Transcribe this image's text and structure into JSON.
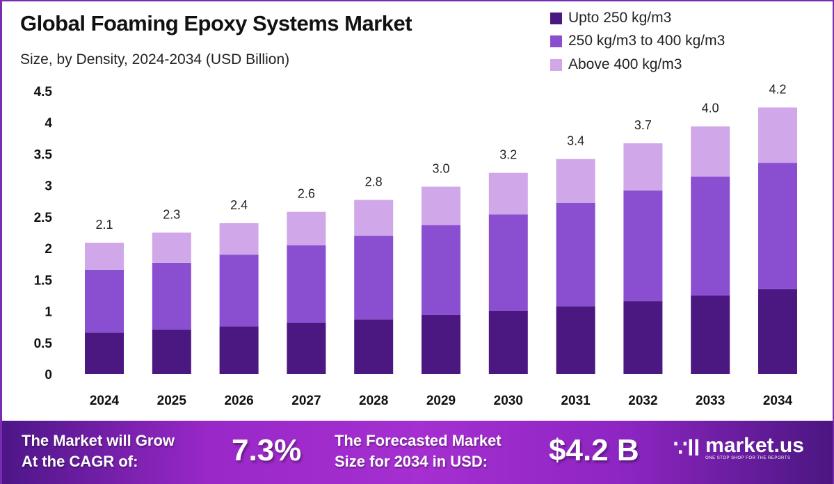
{
  "header": {
    "title": "Global Foaming Epoxy Systems Market",
    "subtitle": "Size, by Density, 2024-2034 (USD Billion)"
  },
  "chart_data": {
    "type": "bar",
    "stacked": true,
    "title": "Global Foaming Epoxy Systems Market",
    "subtitle": "Size, by Density, 2024-2034 (USD Billion)",
    "xlabel": "",
    "ylabel": "",
    "ylim": [
      0,
      4.5
    ],
    "yticks": [
      "0",
      "0.5",
      "1",
      "1.5",
      "2",
      "2.5",
      "3",
      "3.5",
      "4",
      "4.5"
    ],
    "grid": false,
    "legend_position": "top-right",
    "categories": [
      "2024",
      "2025",
      "2026",
      "2027",
      "2028",
      "2029",
      "2030",
      "2031",
      "2032",
      "2033",
      "2034"
    ],
    "series": [
      {
        "name": "Upto 250 kg/m3",
        "color": "#4b1780",
        "values": [
          0.66,
          0.71,
          0.76,
          0.82,
          0.87,
          0.94,
          1.01,
          1.08,
          1.16,
          1.25,
          1.35
        ]
      },
      {
        "name": "250 kg/m3 to 400 kg/m3",
        "color": "#8a4fd0",
        "values": [
          1.0,
          1.06,
          1.14,
          1.23,
          1.33,
          1.43,
          1.53,
          1.64,
          1.76,
          1.89,
          2.01
        ]
      },
      {
        "name": "Above 400 kg/m3",
        "color": "#d0a8ea",
        "values": [
          0.43,
          0.48,
          0.5,
          0.53,
          0.57,
          0.61,
          0.66,
          0.7,
          0.75,
          0.8,
          0.88
        ]
      }
    ],
    "totals": [
      "2.1",
      "2.3",
      "2.4",
      "2.6",
      "2.8",
      "3.0",
      "3.2",
      "3.4",
      "3.7",
      "4.0",
      "4.2"
    ]
  },
  "footer": {
    "cagr_text_1": "The Market will Grow",
    "cagr_text_2": "At the CAGR of:",
    "cagr_value": "7.3%",
    "forecast_text_1": "The Forecasted Market",
    "forecast_text_2": "Size for 2034 in USD:",
    "forecast_value": "$4.2 B",
    "logo_name": "market.us",
    "logo_tagline": "ONE STOP SHOP FOR THE REPORTS"
  }
}
